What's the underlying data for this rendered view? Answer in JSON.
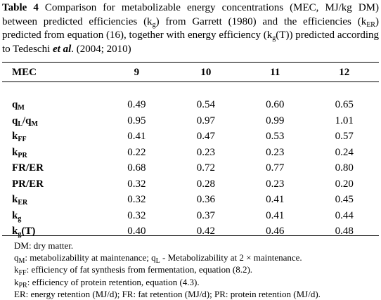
{
  "caption": {
    "label": "Table 4",
    "text_a": " Comparison for metabolizable energy concentrations (MEC, MJ/kg DM) between predicted efficiencies (k",
    "sub_g": "g",
    "text_b": ") from Garrett (1980) and the efficiencies (k",
    "sub_er": "ER",
    "text_c": ") predicted from equation (16), together with energy efficiency (k",
    "sub_g2": "g",
    "text_d": "(T)) predicted according to Tedeschi ",
    "et_al": "et al",
    "text_e": ". (2004; 2010)"
  },
  "table": {
    "header": [
      "MEC",
      "9",
      "10",
      "11",
      "12"
    ],
    "rows": [
      {
        "label_main": "q",
        "label_sub": "M",
        "label_rest": "",
        "label_sub2": "",
        "values": [
          "0.49",
          "0.54",
          "0.60",
          "0.65"
        ]
      },
      {
        "label_main": "q",
        "label_sub": "L",
        "label_rest": "/q",
        "label_sub2": "M",
        "values": [
          "0.95",
          "0.97",
          "0.99",
          "1.01"
        ]
      },
      {
        "label_main": "k",
        "label_sub": "FF",
        "label_rest": "",
        "label_sub2": "",
        "values": [
          "0.41",
          "0.47",
          "0.53",
          "0.57"
        ]
      },
      {
        "label_main": "k",
        "label_sub": "PR",
        "label_rest": "",
        "label_sub2": "",
        "values": [
          "0.22",
          "0.23",
          "0.23",
          "0.24"
        ]
      },
      {
        "label_main": "FR/ER",
        "label_sub": "",
        "label_rest": "",
        "label_sub2": "",
        "values": [
          "0.68",
          "0.72",
          "0.77",
          "0.80"
        ]
      },
      {
        "label_main": "PR/ER",
        "label_sub": "",
        "label_rest": "",
        "label_sub2": "",
        "values": [
          "0.32",
          "0.28",
          "0.23",
          "0.20"
        ]
      },
      {
        "label_main": "k",
        "label_sub": "ER",
        "label_rest": "",
        "label_sub2": "",
        "values": [
          "0.32",
          "0.36",
          "0.41",
          "0.45"
        ]
      },
      {
        "label_main": "k",
        "label_sub": "g",
        "label_rest": "",
        "label_sub2": "",
        "values": [
          "0.32",
          "0.37",
          "0.41",
          "0.44"
        ]
      },
      {
        "label_main": "k",
        "label_sub": "g",
        "label_rest": "(T)",
        "label_sub2": "",
        "values": [
          "0.40",
          "0.42",
          "0.46",
          "0.48"
        ]
      }
    ]
  },
  "notes": [
    {
      "pre": "DM: dry matter.",
      "s1": "",
      "mid": "",
      "s2": "",
      "post": ""
    },
    {
      "pre": "q",
      "s1": "M",
      "mid": ": metabolizability at maintenance; q",
      "s2": "L",
      "post": " - Metabolizability at 2 × maintenance."
    },
    {
      "pre": "k",
      "s1": "FF",
      "mid": ": efficiency of fat synthesis from fermentation, equation (8.2).",
      "s2": "",
      "post": ""
    },
    {
      "pre": "k",
      "s1": "PR",
      "mid": ": efficiency of protein retention, equation (4.3).",
      "s2": "",
      "post": ""
    },
    {
      "pre": "ER: energy retention (MJ/d); FR: fat retention (MJ/d); PR: protein retention (MJ/d).",
      "s1": "",
      "mid": "",
      "s2": "",
      "post": ""
    }
  ]
}
